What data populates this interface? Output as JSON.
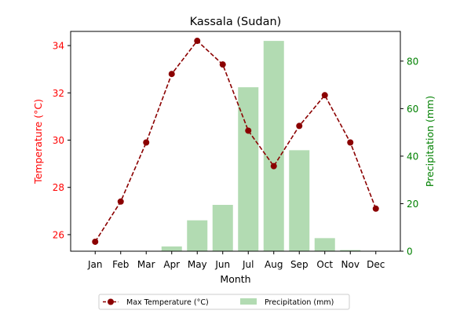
{
  "chart_data": {
    "type": "bar+line",
    "title": "Kassala (Sudan)",
    "xlabel": "Month",
    "categories": [
      "Jan",
      "Feb",
      "Mar",
      "Apr",
      "May",
      "Jun",
      "Jul",
      "Aug",
      "Sep",
      "Oct",
      "Nov",
      "Dec"
    ],
    "y_left": {
      "label": "Temperature (°C)",
      "color": "#ff0000",
      "ylim": [
        25.3,
        34.6
      ],
      "ticks": [
        26,
        28,
        30,
        32,
        34
      ]
    },
    "y_right": {
      "label": "Precipitation (mm)",
      "color": "#008000",
      "ylim": [
        0,
        92.5
      ],
      "ticks": [
        0,
        20,
        40,
        60,
        80
      ]
    },
    "series": [
      {
        "name": "Max Temperature (°C)",
        "type": "line",
        "axis": "left",
        "color": "#8b0000",
        "values": [
          25.7,
          27.4,
          29.9,
          32.8,
          34.2,
          33.2,
          30.4,
          28.9,
          30.6,
          31.9,
          29.9,
          27.1
        ]
      },
      {
        "name": "Precipitation (mm)",
        "type": "bar",
        "axis": "right",
        "color": "#b2dbb2",
        "values": [
          0,
          0,
          0,
          2,
          13,
          19.5,
          69,
          88.5,
          42.5,
          5.5,
          0.5,
          0
        ]
      }
    ],
    "legend": {
      "placement": "bottom-center",
      "columns": 2
    },
    "grid": false
  }
}
